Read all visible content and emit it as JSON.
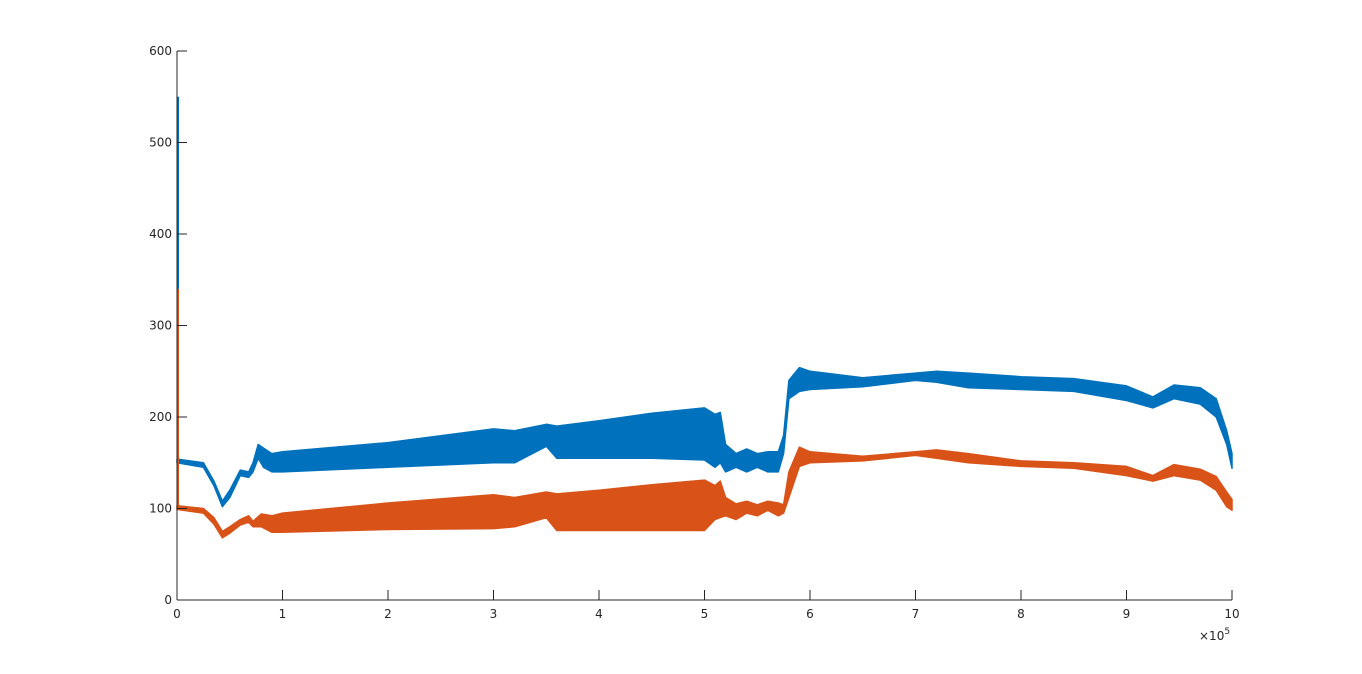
{
  "chart_data": {
    "type": "area",
    "title": "",
    "xlabel": "",
    "ylabel": "",
    "xlim": [
      0,
      1000000
    ],
    "ylim": [
      0,
      600
    ],
    "x_exponent_label": {
      "base": "×10",
      "exponent": "5"
    },
    "x_ticks": [
      0,
      100000,
      200000,
      300000,
      400000,
      500000,
      600000,
      700000,
      800000,
      900000,
      1000000
    ],
    "x_tick_labels": [
      "0",
      "1",
      "2",
      "3",
      "4",
      "5",
      "6",
      "7",
      "8",
      "9",
      "10"
    ],
    "y_ticks": [
      0,
      100,
      200,
      300,
      400,
      500,
      600
    ],
    "y_tick_labels": [
      "0",
      "100",
      "200",
      "300",
      "400",
      "500",
      "600"
    ],
    "grid": false,
    "legend": "none",
    "series": [
      {
        "color": "#0072BD",
        "spike": {
          "x": 0,
          "y_low": 150,
          "y_high": 550
        },
        "x": [
          0,
          25000,
          35000,
          43000,
          50000,
          60000,
          68000,
          72000,
          77000,
          82000,
          90000,
          100000,
          200000,
          300000,
          320000,
          350000,
          360000,
          400000,
          450000,
          500000,
          510000,
          515000,
          520000,
          530000,
          540000,
          550000,
          560000,
          570000,
          575000,
          580000,
          590000,
          600000,
          650000,
          700000,
          720000,
          750000,
          800000,
          850000,
          900000,
          925000,
          945000,
          970000,
          985000,
          995000,
          1000000
        ],
        "upper": [
          154,
          150,
          130,
          108,
          120,
          142,
          140,
          150,
          170,
          166,
          160,
          162,
          172,
          187,
          185,
          192,
          190,
          196,
          204,
          210,
          203,
          205,
          170,
          160,
          165,
          160,
          162,
          162,
          180,
          240,
          254,
          250,
          243,
          248,
          250,
          248,
          244,
          242,
          234,
          222,
          235,
          232,
          220,
          185,
          160
        ],
        "lower": [
          150,
          145,
          125,
          102,
          112,
          136,
          134,
          140,
          155,
          145,
          140,
          140,
          145,
          150,
          150,
          168,
          155,
          155,
          155,
          153,
          145,
          150,
          140,
          145,
          140,
          145,
          140,
          140,
          160,
          220,
          228,
          230,
          233,
          240,
          238,
          232,
          230,
          228,
          218,
          210,
          220,
          214,
          200,
          170,
          144
        ]
      },
      {
        "color": "#D95319",
        "spike": {
          "x": 0,
          "y_low": 100,
          "y_high": 340
        },
        "x": [
          0,
          25000,
          35000,
          43000,
          50000,
          60000,
          68000,
          72000,
          80000,
          90000,
          100000,
          200000,
          300000,
          320000,
          350000,
          360000,
          400000,
          450000,
          500000,
          510000,
          515000,
          520000,
          530000,
          540000,
          550000,
          560000,
          570000,
          575000,
          580000,
          590000,
          600000,
          650000,
          700000,
          720000,
          750000,
          800000,
          850000,
          900000,
          925000,
          945000,
          970000,
          985000,
          995000,
          1000000
        ],
        "upper": [
          103,
          100,
          90,
          75,
          80,
          88,
          92,
          86,
          94,
          92,
          95,
          106,
          115,
          112,
          118,
          116,
          120,
          126,
          131,
          125,
          130,
          112,
          105,
          108,
          104,
          108,
          106,
          104,
          140,
          167,
          162,
          157,
          162,
          164,
          160,
          152,
          150,
          146,
          136,
          148,
          143,
          135,
          118,
          110
        ],
        "lower": [
          99,
          95,
          83,
          68,
          73,
          82,
          85,
          80,
          80,
          74,
          74,
          77,
          78,
          80,
          90,
          76,
          76,
          76,
          76,
          88,
          90,
          92,
          88,
          95,
          92,
          98,
          92,
          95,
          112,
          146,
          150,
          152,
          158,
          155,
          150,
          146,
          144,
          136,
          130,
          136,
          131,
          120,
          102,
          98
        ]
      }
    ]
  }
}
